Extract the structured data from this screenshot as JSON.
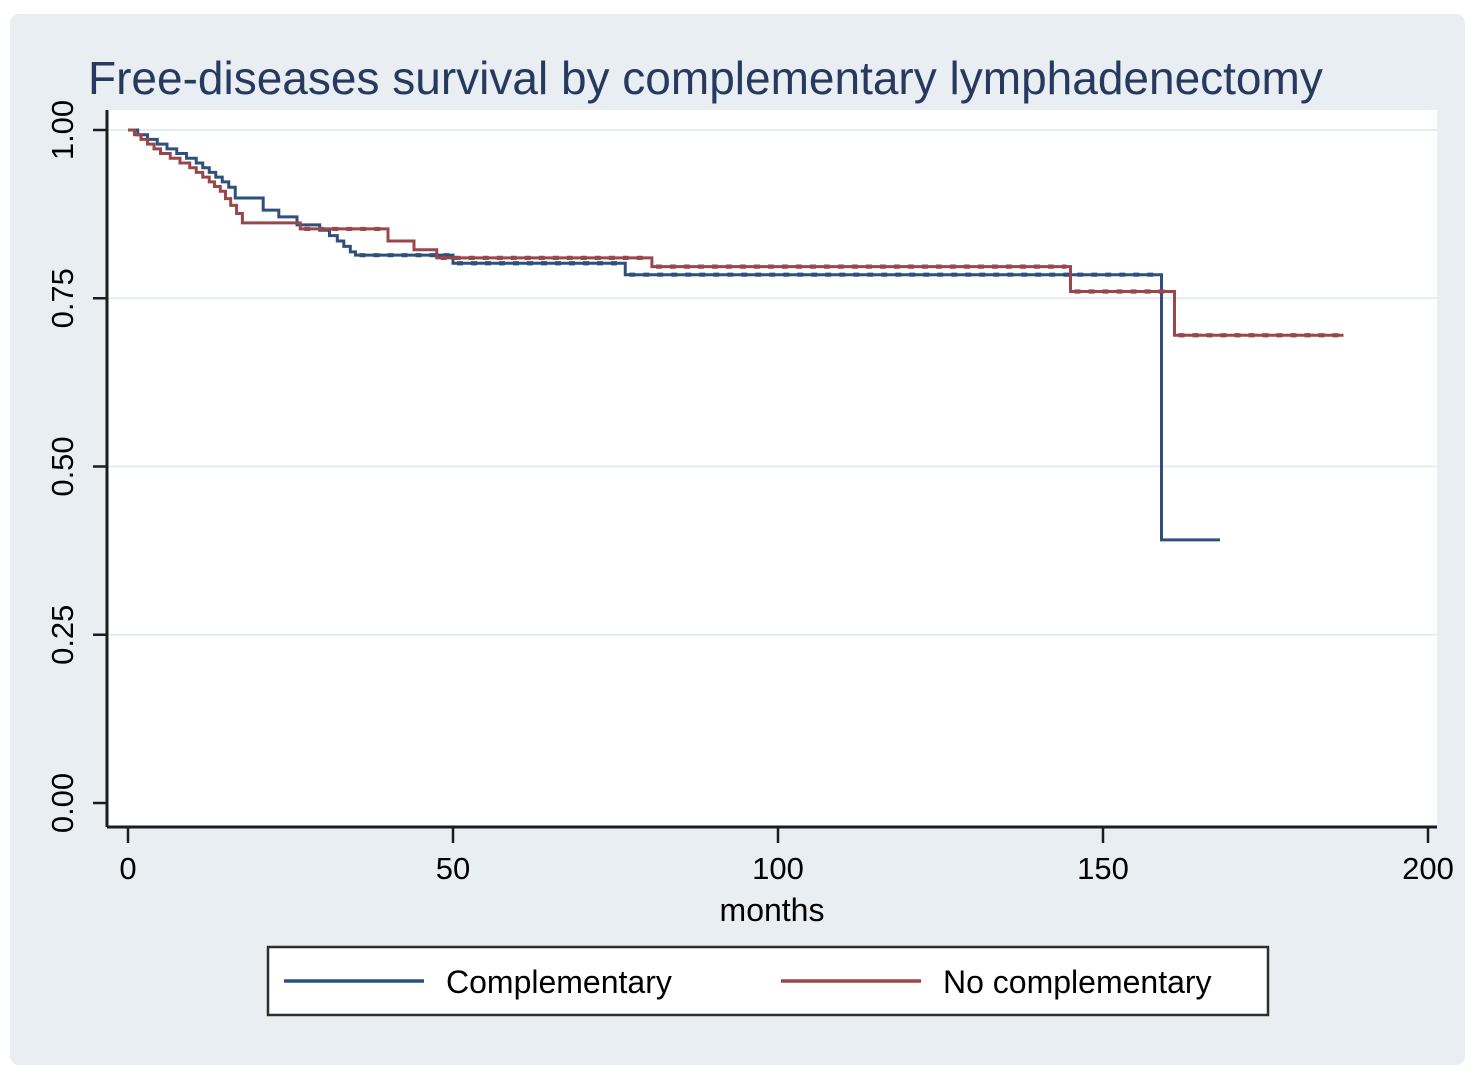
{
  "figure": {
    "title_color": "#27395f",
    "panel_color": "#e8eef2",
    "plot_bg_color": "#ffffff",
    "grid_color": "#e4ecf1",
    "axis_color": "#1c1c1c",
    "text_color": "#000000",
    "legend_bg_color": "#ffffff",
    "legend_border_color": "#2e2e2e"
  },
  "chart_data": {
    "type": "line",
    "subtype": "kaplan_meier_step",
    "title": "Free-diseases survival by complementary lymphadenectomy",
    "xlabel": "months",
    "ylabel": "",
    "xlim": [
      0,
      200
    ],
    "ylim": [
      0.0,
      1.0
    ],
    "x_ticks": [
      0,
      50,
      100,
      150,
      200
    ],
    "y_ticks": [
      {
        "value": 0.0,
        "label": "0.00"
      },
      {
        "value": 0.25,
        "label": "0.25"
      },
      {
        "value": 0.5,
        "label": "0.50"
      },
      {
        "value": 0.75,
        "label": "0.75"
      },
      {
        "value": 1.0,
        "label": "1.00"
      }
    ],
    "grid": "horizontal-only",
    "legend_position": "bottom-center",
    "series": [
      {
        "name": "Complementary",
        "color": "#2d517c",
        "end_t": 168,
        "points": [
          [
            0,
            1.0
          ],
          [
            1.5,
            0.993
          ],
          [
            3,
            0.986
          ],
          [
            4.5,
            0.979
          ],
          [
            6,
            0.972
          ],
          [
            7.5,
            0.965
          ],
          [
            9,
            0.958
          ],
          [
            10.5,
            0.951
          ],
          [
            11.5,
            0.944
          ],
          [
            12.5,
            0.937
          ],
          [
            13.5,
            0.93
          ],
          [
            14.5,
            0.923
          ],
          [
            15.5,
            0.915
          ],
          [
            16.5,
            0.899
          ],
          [
            20.8,
            0.881
          ],
          [
            23.2,
            0.871
          ],
          [
            26,
            0.859
          ],
          [
            29.5,
            0.851
          ],
          [
            31,
            0.843
          ],
          [
            32.2,
            0.835
          ],
          [
            33.2,
            0.827
          ],
          [
            34.2,
            0.819
          ],
          [
            35,
            0.814
          ],
          [
            50,
            0.802
          ],
          [
            76.5,
            0.785
          ],
          [
            159,
            0.391
          ]
        ]
      },
      {
        "name": "No complementary",
        "color": "#9a474c",
        "end_t": 187,
        "points": [
          [
            0,
            1.0
          ],
          [
            1,
            0.993
          ],
          [
            2,
            0.986
          ],
          [
            3,
            0.979
          ],
          [
            4,
            0.972
          ],
          [
            5,
            0.965
          ],
          [
            6.5,
            0.958
          ],
          [
            8,
            0.951
          ],
          [
            9.5,
            0.944
          ],
          [
            10.5,
            0.937
          ],
          [
            11.5,
            0.93
          ],
          [
            12.5,
            0.923
          ],
          [
            13.3,
            0.916
          ],
          [
            14.2,
            0.909
          ],
          [
            15,
            0.898
          ],
          [
            15.8,
            0.888
          ],
          [
            16.7,
            0.876
          ],
          [
            17.6,
            0.862
          ],
          [
            26.5,
            0.853
          ],
          [
            40,
            0.835
          ],
          [
            44,
            0.822
          ],
          [
            47.5,
            0.81
          ],
          [
            80.6,
            0.797
          ],
          [
            145,
            0.76
          ],
          [
            161,
            0.695
          ]
        ]
      }
    ]
  }
}
